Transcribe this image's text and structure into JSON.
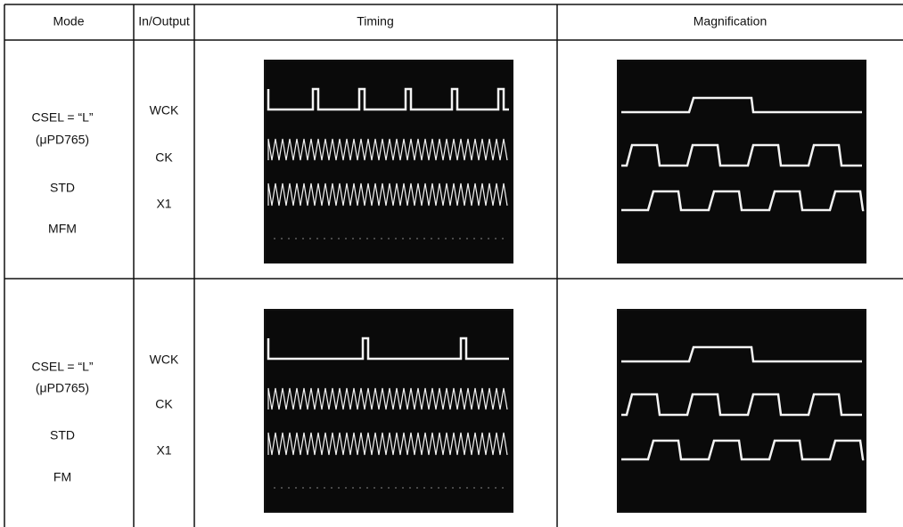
{
  "table": {
    "columns": [
      "Mode",
      "In/Output",
      "Timing",
      "Magnification"
    ],
    "rows": [
      {
        "mode": [
          "CSEL = “L”",
          "(μPD765)",
          "STD",
          "MFM"
        ],
        "signals": [
          "WCK",
          "CK",
          "X1"
        ]
      },
      {
        "mode": [
          "CSEL = “L”",
          "(μPD765)",
          "STD",
          "FM"
        ],
        "signals": [
          "WCK",
          "CK",
          "X1"
        ]
      }
    ]
  }
}
